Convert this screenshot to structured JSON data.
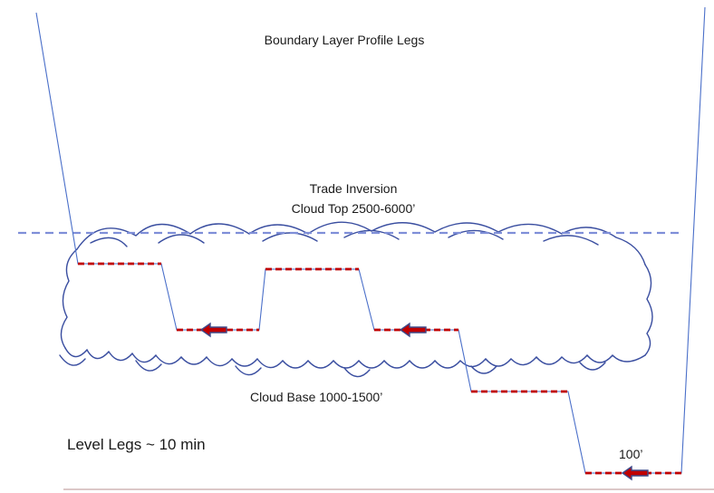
{
  "title": "Boundary Layer Profile Legs",
  "labels": {
    "trade_inversion": "Trade Inversion",
    "cloud_top": "Cloud Top 2500-6000’",
    "cloud_base": "Cloud Base  1000-1500’",
    "level_legs": "Level Legs ~ 10 min",
    "low_leg": "100’"
  },
  "colors": {
    "flight_track": "#4a6fc9",
    "inversion_line": "#7f8fd8",
    "level_leg": "#c00000",
    "arrow_fill": "#c00000",
    "arrow_outline": "#3d4a8a",
    "cloud_outline": "#3a4ea0",
    "ground_line": "#c8a8a8"
  },
  "icons": {
    "direction_arrow": "arrow-left-icon",
    "cloud": "cloud-icon"
  }
}
